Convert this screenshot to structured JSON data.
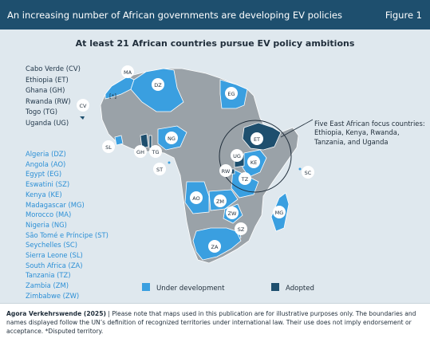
{
  "header": {
    "title": "An increasing number of African governments are developing EV policies",
    "figure_label": "Figure 1"
  },
  "subtitle": "At least 21 African countries pursue EV policy ambitions",
  "adopted_countries": [
    "Cabo Verde (CV)",
    "Ethiopia (ET)",
    "Ghana (GH)",
    "Rwanda (RW)",
    "Togo (TG)",
    "Uganda (UG)"
  ],
  "development_countries": [
    "Algeria (DZ)",
    "Angola (AO)",
    "Egypt (EG)",
    "Eswatini (SZ)",
    "Kenya (KE)",
    "Madagascar (MG)",
    "Morocco (MA)",
    "Nigeria (NG)",
    "São Tomé e Príncipe (ST)",
    "Seychelles (SC)",
    "Sierra Leone (SL)",
    "South Africa (ZA)",
    "Tanzania (TZ)",
    "Zambia (ZM)",
    "Zimbabwe (ZW)"
  ],
  "map_labels": [
    "MA",
    "DZ",
    "EG",
    "CV",
    "SL",
    "GH",
    "TG",
    "NG",
    "ST",
    "ET",
    "UG",
    "KE",
    "RW",
    "TZ",
    "SC",
    "AO",
    "ZM",
    "ZW",
    "MG",
    "SZ",
    "ZA"
  ],
  "disputed_marker": "[*]",
  "focus_annotation": "Five East African focus countries: Ethiopia, Kenya, Rwanda, Tanzania, and Uganda",
  "legend": {
    "under_development": "Under development",
    "adopted": "Adopted"
  },
  "colors": {
    "base_land": "#9aa2a8",
    "under_development": "#3a9fe0",
    "adopted": "#1e4f6e",
    "header": "#1e4f6e",
    "background": "#dfe8ee"
  },
  "footer": {
    "source": "Agora Verkehrswende (2025)",
    "note": " | Please note that maps used in this publication are for illustrative purposes only. The boundaries and names displayed follow the UN’s definition of recognized territories under international law. Their use does not imply endorsement or acceptance. *Disputed territory."
  }
}
